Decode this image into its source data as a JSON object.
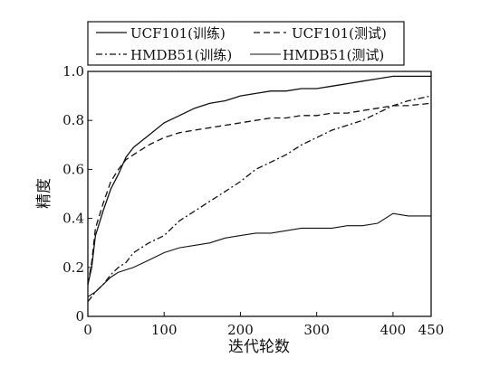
{
  "chart_data": {
    "type": "line",
    "xlabel": "迭代轮数",
    "ylabel": "精度",
    "xlim": [
      0,
      450
    ],
    "ylim": [
      0,
      1.0
    ],
    "x_ticks": [
      "0",
      "100",
      "200",
      "300",
      "400",
      "450"
    ],
    "x_tick_values": [
      0,
      100,
      200,
      300,
      400,
      450
    ],
    "y_ticks": [
      "0",
      "0.2",
      "0.4",
      "0.6",
      "0.8",
      "1.0"
    ],
    "y_tick_values": [
      0,
      0.2,
      0.4,
      0.6,
      0.8,
      1.0
    ],
    "grid": false,
    "legend_position": "top",
    "series": [
      {
        "name": "UCF101(训练)",
        "style": "solid",
        "x": [
          0,
          5,
          10,
          20,
          30,
          40,
          50,
          60,
          80,
          100,
          120,
          140,
          160,
          180,
          200,
          220,
          240,
          260,
          280,
          300,
          320,
          340,
          360,
          380,
          400,
          420,
          450
        ],
        "y": [
          0.13,
          0.2,
          0.33,
          0.43,
          0.52,
          0.58,
          0.65,
          0.69,
          0.74,
          0.79,
          0.82,
          0.85,
          0.87,
          0.88,
          0.9,
          0.91,
          0.92,
          0.92,
          0.93,
          0.93,
          0.94,
          0.95,
          0.96,
          0.97,
          0.98,
          0.98,
          0.98
        ]
      },
      {
        "name": "UCF101(测试)",
        "style": "dashed",
        "x": [
          0,
          5,
          10,
          20,
          30,
          40,
          50,
          60,
          80,
          100,
          120,
          140,
          160,
          180,
          200,
          220,
          240,
          260,
          280,
          300,
          320,
          340,
          360,
          380,
          400,
          420,
          450
        ],
        "y": [
          0.13,
          0.22,
          0.36,
          0.46,
          0.55,
          0.6,
          0.64,
          0.66,
          0.7,
          0.73,
          0.75,
          0.76,
          0.77,
          0.78,
          0.79,
          0.8,
          0.81,
          0.81,
          0.82,
          0.82,
          0.83,
          0.83,
          0.84,
          0.85,
          0.86,
          0.86,
          0.87
        ]
      },
      {
        "name": "HMDB51(训练)",
        "style": "dashdot",
        "x": [
          0,
          10,
          20,
          30,
          40,
          50,
          60,
          80,
          100,
          120,
          140,
          160,
          180,
          200,
          220,
          240,
          260,
          280,
          300,
          320,
          340,
          360,
          380,
          400,
          420,
          450
        ],
        "y": [
          0.06,
          0.1,
          0.13,
          0.17,
          0.2,
          0.22,
          0.26,
          0.3,
          0.33,
          0.39,
          0.43,
          0.47,
          0.51,
          0.55,
          0.6,
          0.63,
          0.66,
          0.7,
          0.73,
          0.76,
          0.78,
          0.8,
          0.83,
          0.86,
          0.88,
          0.9
        ]
      },
      {
        "name": "HMDB51(测试)",
        "style": "solid",
        "x": [
          0,
          10,
          20,
          30,
          40,
          50,
          60,
          80,
          100,
          120,
          140,
          160,
          180,
          200,
          220,
          240,
          260,
          280,
          300,
          320,
          340,
          360,
          380,
          400,
          420,
          450
        ],
        "y": [
          0.08,
          0.1,
          0.13,
          0.16,
          0.18,
          0.19,
          0.2,
          0.23,
          0.26,
          0.28,
          0.29,
          0.3,
          0.32,
          0.33,
          0.34,
          0.34,
          0.35,
          0.36,
          0.36,
          0.36,
          0.37,
          0.37,
          0.38,
          0.42,
          0.41,
          0.41
        ]
      }
    ]
  }
}
